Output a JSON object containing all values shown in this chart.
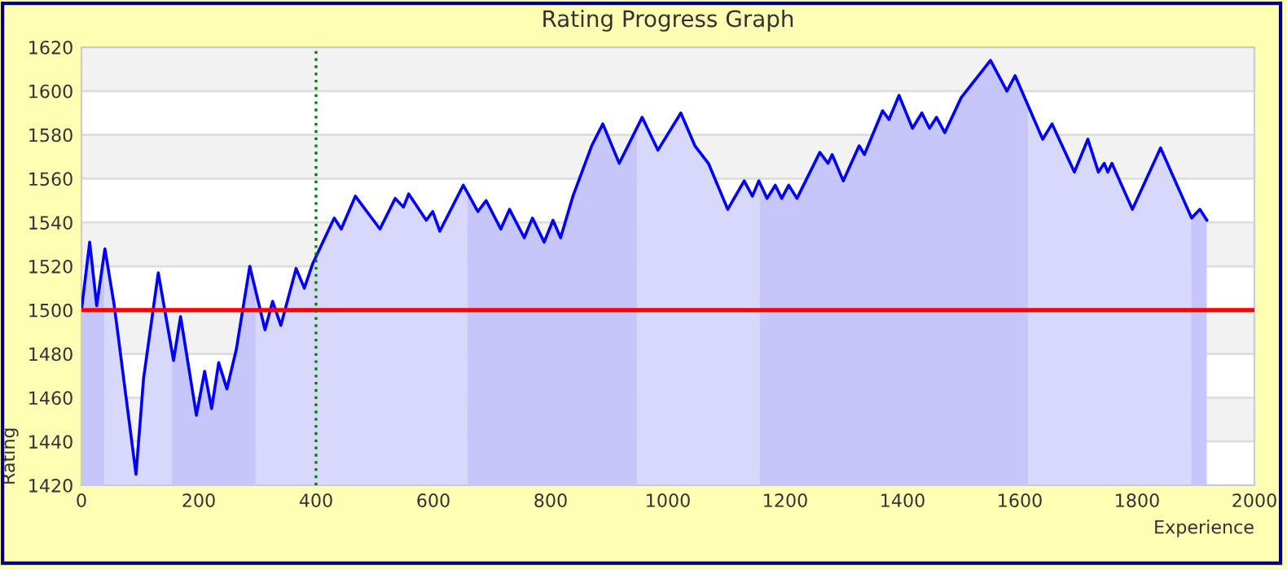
{
  "chart_data": {
    "type": "area",
    "title": "Rating Progress Graph",
    "xlabel": "Experience",
    "ylabel": "Rating",
    "xlim": [
      0,
      2000
    ],
    "xticks": [
      0,
      200,
      400,
      600,
      800,
      1000,
      1200,
      1400,
      1600,
      1800,
      2000
    ],
    "ylim": [
      1420,
      1620
    ],
    "yticks": [
      1420,
      1440,
      1460,
      1480,
      1500,
      1520,
      1540,
      1560,
      1580,
      1600,
      1620
    ],
    "grid": "y",
    "legend": false,
    "marker": "none",
    "line_style": "solid",
    "series": [
      {
        "color": "#0000ff",
        "x": [
          0,
          14,
          26,
          40,
          56,
          93,
          106,
          131,
          157,
          169,
          196,
          210,
          222,
          234,
          248,
          264,
          287,
          313,
          326,
          340,
          366,
          380,
          394,
          431,
          443,
          467,
          509,
          535,
          549,
          558,
          588,
          599,
          611,
          651,
          676,
          690,
          715,
          730,
          755,
          769,
          789,
          804,
          817,
          838,
          870,
          889,
          917,
          956,
          983,
          1022,
          1046,
          1069,
          1102,
          1130,
          1144,
          1155,
          1169,
          1183,
          1194,
          1206,
          1220,
          1259,
          1273,
          1280,
          1299,
          1326,
          1335,
          1366,
          1377,
          1394,
          1417,
          1433,
          1446,
          1458,
          1472,
          1500,
          1550,
          1578,
          1592,
          1639,
          1655,
          1693,
          1716,
          1734,
          1744,
          1750,
          1757,
          1792,
          1840,
          1893,
          1907,
          1919
        ],
        "values": [
          1500,
          1531,
          1502,
          1528,
          1502,
          1425,
          1469,
          1517,
          1477,
          1497,
          1452,
          1472,
          1455,
          1476,
          1464,
          1482,
          1520,
          1491,
          1504,
          1493,
          1519,
          1510,
          1521,
          1542,
          1537,
          1552,
          1537,
          1551,
          1547,
          1553,
          1541,
          1545,
          1536,
          1557,
          1545,
          1550,
          1537,
          1546,
          1533,
          1542,
          1531,
          1541,
          1533,
          1552,
          1575,
          1585,
          1567,
          1588,
          1573,
          1590,
          1575,
          1567,
          1546,
          1559,
          1552,
          1559,
          1551,
          1557,
          1551,
          1557,
          1551,
          1572,
          1567,
          1571,
          1559,
          1575,
          1571,
          1591,
          1587,
          1598,
          1583,
          1590,
          1583,
          1588,
          1581,
          1597,
          1614,
          1600,
          1607,
          1578,
          1585,
          1563,
          1578,
          1563,
          1567,
          1563,
          1567,
          1546,
          1574,
          1542,
          1546,
          1541
        ]
      }
    ],
    "ref_lines": [
      {
        "axis": "y",
        "value": 1500,
        "color": "#ff0000",
        "line_style": "solid"
      },
      {
        "axis": "x",
        "value": 400,
        "color": "#008000",
        "line_style": "dotted"
      }
    ],
    "bands": [
      {
        "axis": "x",
        "from": 0,
        "to": 39,
        "color": "#cfcffa"
      },
      {
        "axis": "x",
        "from": 39,
        "to": 154,
        "color": "#e1e1fc"
      },
      {
        "axis": "x",
        "from": 154,
        "to": 297,
        "color": "#cfcffa"
      },
      {
        "axis": "x",
        "from": 297,
        "to": 658,
        "color": "#e1e1fc"
      },
      {
        "axis": "x",
        "from": 658,
        "to": 947,
        "color": "#cfcffa"
      },
      {
        "axis": "x",
        "from": 947,
        "to": 1157,
        "color": "#e1e1fc"
      },
      {
        "axis": "x",
        "from": 1157,
        "to": 1614,
        "color": "#cfcffa"
      },
      {
        "axis": "x",
        "from": 1614,
        "to": 1892,
        "color": "#e1e1fc"
      },
      {
        "axis": "x",
        "from": 1892,
        "to": 1919,
        "color": "#cfcffa"
      }
    ]
  }
}
